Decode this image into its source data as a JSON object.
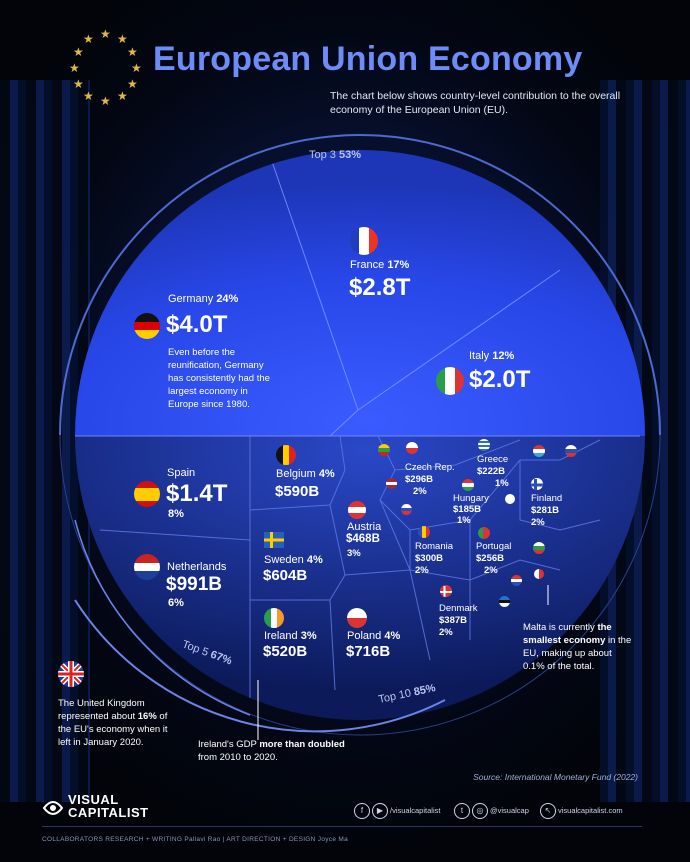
{
  "title": "European Union Economy",
  "subtitle": "The chart below shows country-level contribution to the overall economy of the European Union (EU).",
  "ring_labels": {
    "top3": "Top 3",
    "top3_pct": "53%",
    "top5": "Top 5",
    "top5_pct": "67%",
    "top10": "Top 10",
    "top10_pct": "85%"
  },
  "germany_note": "Even before the reunification, Germany has consistently had the largest economy in Europe since 1980.",
  "uk_note_pre": "The United Kingdom represented about ",
  "uk_note_bold": "16%",
  "uk_note_post": " of the EU's economy when it left in January 2020.",
  "ireland_note_pre": "Ireland's GDP ",
  "ireland_note_bold1": "more than doubled",
  "ireland_note_post": " from 2010 to 2020.",
  "malta_note_pre": "Malta is currently ",
  "malta_note_bold": "the smallest economy",
  "malta_note_post": " in the EU, making up about 0.1% of the total.",
  "source": "Source: International Monetary Fund (2022)",
  "logo_line1": "VISUAL",
  "logo_line2": "CAPITALIST",
  "footer": "COLLABORATORS   RESEARCH + WRITING  Pallavi Rao   |   ART DIRECTION + DESIGN  Joyce Ma",
  "social": {
    "handle1": "/visualcapitalist",
    "handle2": "@visualcap",
    "site": "visualcapitalist.com"
  },
  "colors": {
    "bright": "#2f52ff",
    "mid": "#1e3fd8",
    "dark": "#14237a",
    "accent": "#6e8cf5",
    "gold": "#e0b84a"
  },
  "chart_data": {
    "type": "treemap",
    "title": "European Union Economy",
    "total_share_groups": [
      {
        "name": "Top 3",
        "share_pct": 53
      },
      {
        "name": "Top 5",
        "share_pct": 67
      },
      {
        "name": "Top 10",
        "share_pct": 85
      }
    ],
    "countries": [
      {
        "name": "Germany",
        "share": "24%",
        "gdp": "$4.0T"
      },
      {
        "name": "France",
        "share": "17%",
        "gdp": "$2.8T"
      },
      {
        "name": "Italy",
        "share": "12%",
        "gdp": "$2.0T"
      },
      {
        "name": "Spain",
        "share": "8%",
        "gdp": "$1.4T"
      },
      {
        "name": "Netherlands",
        "share": "6%",
        "gdp": "$991B"
      },
      {
        "name": "Belgium",
        "share": "4%",
        "gdp": "$590B"
      },
      {
        "name": "Sweden",
        "share": "4%",
        "gdp": "$604B"
      },
      {
        "name": "Ireland",
        "share": "3%",
        "gdp": "$520B"
      },
      {
        "name": "Poland",
        "share": "4%",
        "gdp": "$716B"
      },
      {
        "name": "Austria",
        "share": "3%",
        "gdp": "$468B"
      },
      {
        "name": "Czech Rep.",
        "share": "2%",
        "gdp": "$296B"
      },
      {
        "name": "Greece",
        "share": "1%",
        "gdp": "$222B"
      },
      {
        "name": "Hungary",
        "share": "1%",
        "gdp": "$185B"
      },
      {
        "name": "Finland",
        "share": "2%",
        "gdp": "$281B"
      },
      {
        "name": "Romania",
        "share": "2%",
        "gdp": "$300B"
      },
      {
        "name": "Portugal",
        "share": "2%",
        "gdp": "$256B"
      },
      {
        "name": "Denmark",
        "share": "2%",
        "gdp": "$387B"
      }
    ]
  }
}
